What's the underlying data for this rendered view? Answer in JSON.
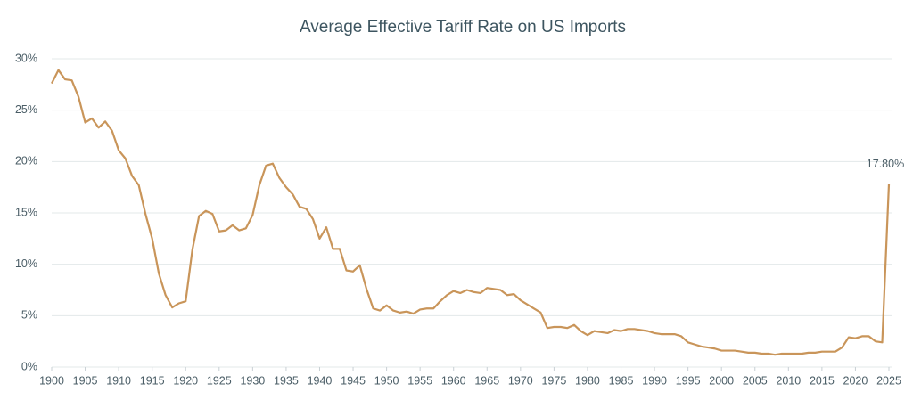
{
  "chart_data": {
    "type": "line",
    "title": "Average Effective Tariff Rate on US Imports",
    "x": [
      1900,
      1901,
      1902,
      1903,
      1904,
      1905,
      1906,
      1907,
      1908,
      1909,
      1910,
      1911,
      1912,
      1913,
      1914,
      1915,
      1916,
      1917,
      1918,
      1919,
      1920,
      1921,
      1922,
      1923,
      1924,
      1925,
      1926,
      1927,
      1928,
      1929,
      1930,
      1931,
      1932,
      1933,
      1934,
      1935,
      1936,
      1937,
      1938,
      1939,
      1940,
      1941,
      1942,
      1943,
      1944,
      1945,
      1946,
      1947,
      1948,
      1949,
      1950,
      1951,
      1952,
      1953,
      1954,
      1955,
      1956,
      1957,
      1958,
      1959,
      1960,
      1961,
      1962,
      1963,
      1964,
      1965,
      1966,
      1967,
      1968,
      1969,
      1970,
      1971,
      1972,
      1973,
      1974,
      1975,
      1976,
      1977,
      1978,
      1979,
      1980,
      1981,
      1982,
      1983,
      1984,
      1985,
      1986,
      1987,
      1988,
      1989,
      1990,
      1991,
      1992,
      1993,
      1994,
      1995,
      1996,
      1997,
      1998,
      1999,
      2000,
      2001,
      2002,
      2003,
      2004,
      2005,
      2006,
      2007,
      2008,
      2009,
      2010,
      2011,
      2012,
      2013,
      2014,
      2015,
      2016,
      2017,
      2018,
      2019,
      2020,
      2021,
      2022,
      2023,
      2024,
      2025
    ],
    "values": [
      27.6,
      28.9,
      28.0,
      27.9,
      26.3,
      23.8,
      24.2,
      23.3,
      23.9,
      23.0,
      21.1,
      20.3,
      18.6,
      17.7,
      14.9,
      12.5,
      9.1,
      7.0,
      5.8,
      6.2,
      6.4,
      11.4,
      14.7,
      15.2,
      14.9,
      13.2,
      13.3,
      13.8,
      13.3,
      13.5,
      14.8,
      17.7,
      19.6,
      19.8,
      18.4,
      17.5,
      16.8,
      15.6,
      15.4,
      14.4,
      12.5,
      13.6,
      11.5,
      11.5,
      9.4,
      9.3,
      9.9,
      7.6,
      5.7,
      5.5,
      6.0,
      5.5,
      5.3,
      5.4,
      5.2,
      5.6,
      5.7,
      5.7,
      6.4,
      7.0,
      7.4,
      7.2,
      7.5,
      7.3,
      7.2,
      7.7,
      7.6,
      7.5,
      7.0,
      7.1,
      6.5,
      6.1,
      5.7,
      5.3,
      3.8,
      3.9,
      3.9,
      3.8,
      4.1,
      3.5,
      3.1,
      3.5,
      3.4,
      3.3,
      3.6,
      3.5,
      3.7,
      3.7,
      3.6,
      3.5,
      3.3,
      3.2,
      3.2,
      3.2,
      3.0,
      2.4,
      2.2,
      2.0,
      1.9,
      1.8,
      1.6,
      1.6,
      1.6,
      1.5,
      1.4,
      1.4,
      1.3,
      1.3,
      1.2,
      1.3,
      1.3,
      1.3,
      1.3,
      1.4,
      1.4,
      1.5,
      1.5,
      1.5,
      1.9,
      2.9,
      2.8,
      3.0,
      3.0,
      2.5,
      2.4,
      17.8
    ],
    "value_labels": [
      null,
      null,
      null,
      null,
      null,
      null,
      null,
      null,
      null,
      null,
      null,
      null,
      null,
      null,
      null,
      null,
      null,
      null,
      null,
      null,
      null,
      null,
      null,
      null,
      null,
      null,
      null,
      null,
      null,
      null,
      null,
      null,
      null,
      null,
      null,
      null,
      null,
      null,
      null,
      null,
      null,
      null,
      null,
      null,
      null,
      null,
      null,
      null,
      null,
      null,
      null,
      null,
      null,
      null,
      null,
      null,
      null,
      null,
      null,
      null,
      null,
      null,
      null,
      null,
      null,
      null,
      null,
      null,
      null,
      null,
      null,
      null,
      null,
      null,
      null,
      null,
      null,
      null,
      null,
      null,
      null,
      null,
      null,
      null,
      null,
      null,
      null,
      null,
      null,
      null,
      null,
      null,
      null,
      null,
      null,
      null,
      null,
      null,
      null,
      null,
      null,
      null,
      null,
      null,
      null,
      null,
      null,
      null,
      null,
      null,
      null,
      null,
      null,
      null,
      null,
      null,
      null,
      null,
      null,
      null,
      null,
      null,
      null,
      null,
      null,
      "17.80%"
    ],
    "color": "#c9955a",
    "xlim": [
      1900,
      2025
    ],
    "xticks": [
      1900,
      1905,
      1910,
      1915,
      1920,
      1925,
      1930,
      1935,
      1940,
      1945,
      1950,
      1955,
      1960,
      1965,
      1970,
      1975,
      1980,
      1985,
      1990,
      1995,
      2000,
      2005,
      2010,
      2015,
      2020,
      2025
    ],
    "ylim": [
      0,
      30
    ],
    "yticks": [
      {
        "value": 0,
        "label": "0%"
      },
      {
        "value": 5,
        "label": "5%"
      },
      {
        "value": 10,
        "label": "10%"
      },
      {
        "value": 15,
        "label": "15%"
      },
      {
        "value": 20,
        "label": "20%"
      },
      {
        "value": 25,
        "label": "25%"
      },
      {
        "value": 30,
        "label": "30%"
      }
    ],
    "grid": true
  }
}
